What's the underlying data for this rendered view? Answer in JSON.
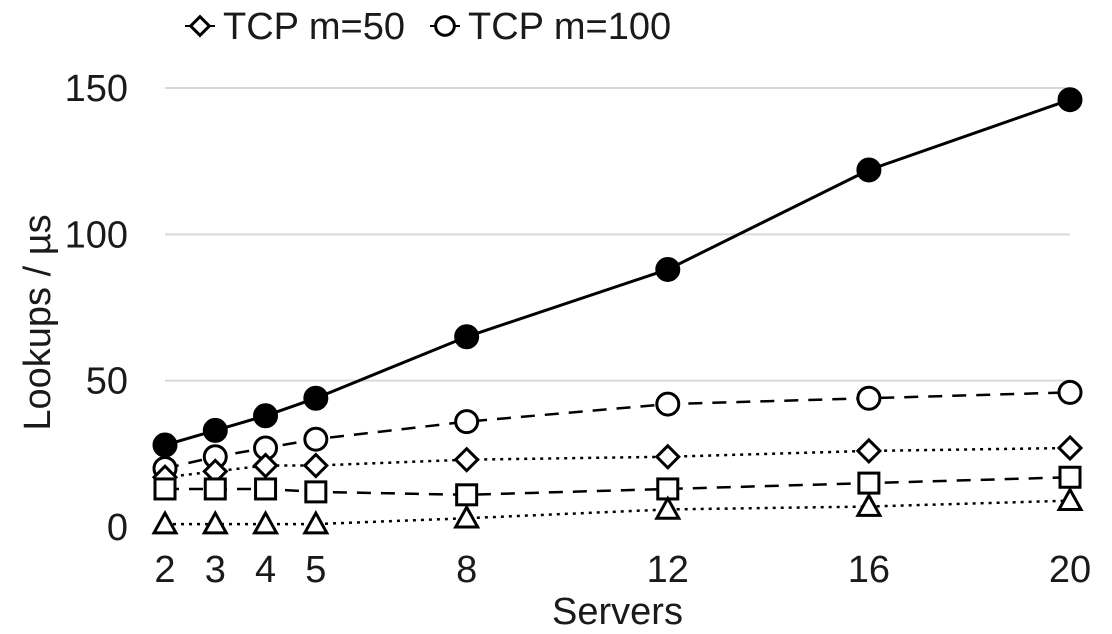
{
  "chart_data": {
    "type": "line",
    "title": "",
    "xlabel": "Servers",
    "ylabel": "Lookups / µs",
    "x": [
      2,
      3,
      4,
      5,
      8,
      12,
      16,
      20
    ],
    "x_tick_labels": [
      "2",
      "3",
      "4",
      "5",
      "8",
      "12",
      "16",
      "20"
    ],
    "ylim": [
      0,
      150
    ],
    "y_ticks": [
      0,
      50,
      100,
      150
    ],
    "y_tick_labels": [
      "0",
      "50",
      "100",
      "150"
    ],
    "grid": "horizontal",
    "legend_position": "top-left",
    "series": [
      {
        "name": "",
        "marker": "filled-circle",
        "line": "solid",
        "values": [
          28,
          33,
          38,
          44,
          65,
          88,
          122,
          146
        ]
      },
      {
        "name": "TCP m=100",
        "marker": "open-circle",
        "line": "dashed",
        "values": [
          20,
          24,
          27,
          30,
          36,
          42,
          44,
          46
        ]
      },
      {
        "name": "TCP m=50",
        "marker": "open-diamond",
        "line": "dotted",
        "values": [
          17,
          19,
          21,
          21,
          23,
          24,
          26,
          27
        ]
      },
      {
        "name": "",
        "marker": "open-square",
        "line": "dashed",
        "values": [
          13,
          13,
          13,
          12,
          11,
          13,
          15,
          17
        ]
      },
      {
        "name": "",
        "marker": "open-triangle",
        "line": "dotted",
        "values": [
          1,
          1,
          1,
          1,
          3,
          6,
          7,
          9
        ]
      }
    ],
    "legend": [
      {
        "label": "TCP m=50",
        "marker": "open-diamond"
      },
      {
        "label": "TCP m=100",
        "marker": "open-circle"
      }
    ],
    "colors": {
      "line": "#000000",
      "grid": "#d9d9d9",
      "text": "#1a1a1a"
    }
  }
}
